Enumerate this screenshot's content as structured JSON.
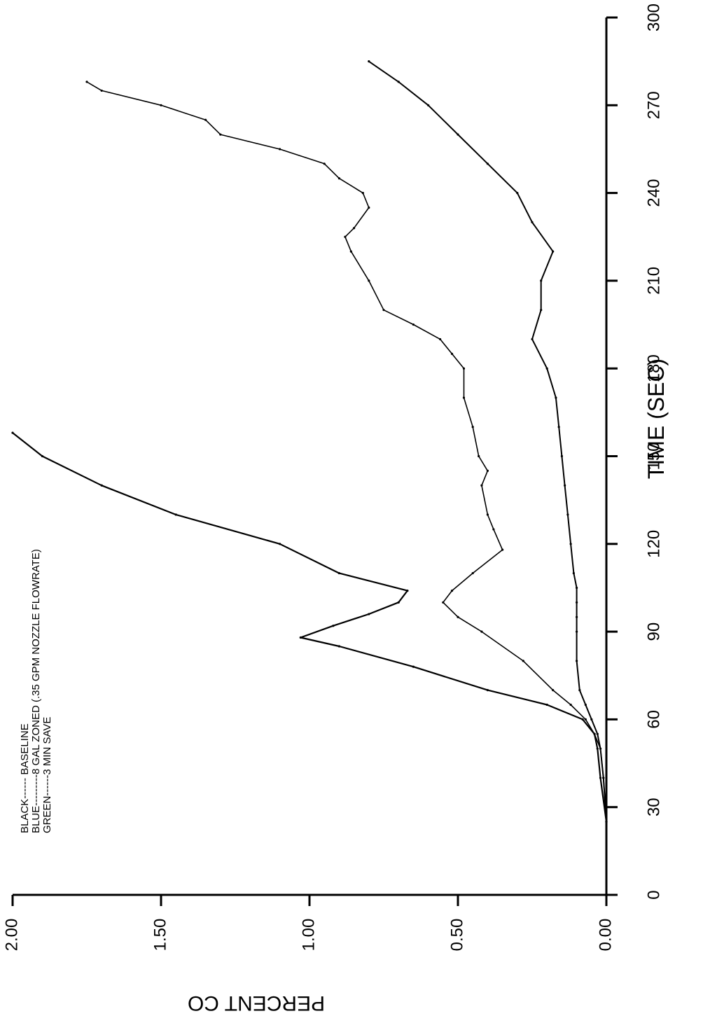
{
  "chart_data": {
    "type": "line",
    "title": "",
    "xlabel": "TIME (SEC)",
    "ylabel": "PERCENT CO",
    "xlim": [
      0,
      300
    ],
    "ylim": [
      0,
      2
    ],
    "x_ticks": [
      0,
      30,
      60,
      90,
      120,
      150,
      180,
      210,
      240,
      270,
      300
    ],
    "x_tick_labels": [
      "0",
      "30",
      "60",
      "90",
      "120",
      "150",
      "180",
      "210",
      "240",
      "270",
      "300"
    ],
    "y_ticks": [
      0,
      0.5,
      1,
      1.5,
      2
    ],
    "y_tick_labels": [
      "0.00",
      "0.50",
      "1.00",
      "1.50",
      "2.00"
    ],
    "grid": false,
    "legend_placement": "top-left",
    "legend": [
      "BLACK------ BASELINE",
      "BLUE---------8 GAL ZONED (.35 GPM NOZZLE FLOWRATE)",
      "GREEN------3 MIN SAVE"
    ],
    "series": [
      {
        "name": "BASELINE",
        "color": "#000000",
        "x": [
          25,
          40,
          50,
          55,
          60,
          65,
          70,
          78,
          85,
          88,
          92,
          96,
          100,
          104,
          110,
          120,
          130,
          140,
          150,
          158
        ],
        "y": [
          0,
          0.02,
          0.03,
          0.04,
          0.08,
          0.2,
          0.4,
          0.65,
          0.9,
          1.03,
          0.92,
          0.8,
          0.7,
          0.67,
          0.9,
          1.1,
          1.45,
          1.7,
          1.9,
          2.0
        ]
      },
      {
        "name": "8 GAL ZONED (.35 GPM NOZZLE FLOWRATE)",
        "color": "#000000",
        "x": [
          25,
          40,
          50,
          55,
          60,
          65,
          70,
          80,
          90,
          95,
          100,
          104,
          110,
          118,
          125,
          130,
          140,
          145,
          150,
          160,
          170,
          180,
          185,
          190,
          195,
          200,
          210,
          220,
          225,
          228,
          235,
          240,
          245,
          250,
          255,
          260,
          265,
          270,
          275,
          278
        ],
        "y": [
          0,
          0.01,
          0.02,
          0.04,
          0.07,
          0.12,
          0.18,
          0.28,
          0.42,
          0.5,
          0.55,
          0.52,
          0.45,
          0.35,
          0.38,
          0.4,
          0.42,
          0.4,
          0.43,
          0.45,
          0.48,
          0.48,
          0.52,
          0.56,
          0.65,
          0.75,
          0.8,
          0.86,
          0.88,
          0.85,
          0.8,
          0.82,
          0.9,
          0.95,
          1.1,
          1.3,
          1.35,
          1.5,
          1.7,
          1.75
        ]
      },
      {
        "name": "3 MIN SAVE",
        "color": "#000000",
        "x": [
          25,
          40,
          50,
          55,
          60,
          65,
          70,
          80,
          90,
          95,
          100,
          105,
          110,
          120,
          130,
          140,
          150,
          160,
          170,
          180,
          190,
          200,
          210,
          220,
          230,
          240,
          250,
          260,
          270,
          278,
          285
        ],
        "y": [
          0,
          0.01,
          0.02,
          0.03,
          0.05,
          0.07,
          0.09,
          0.1,
          0.1,
          0.1,
          0.1,
          0.1,
          0.11,
          0.12,
          0.13,
          0.14,
          0.15,
          0.16,
          0.17,
          0.2,
          0.25,
          0.22,
          0.22,
          0.18,
          0.25,
          0.3,
          0.4,
          0.5,
          0.6,
          0.7,
          0.8
        ]
      }
    ]
  }
}
